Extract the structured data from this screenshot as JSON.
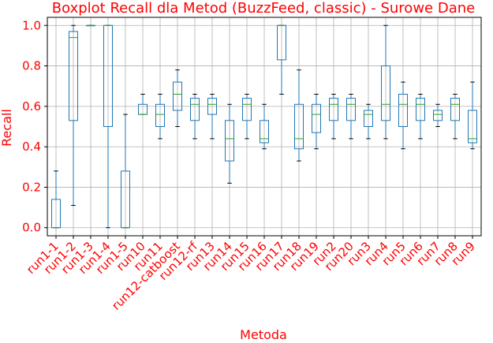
{
  "chart_data": {
    "type": "boxplot",
    "title": "Boxplot Recall dla Metod (BuzzFeed, classic) - Surowe Dane",
    "xlabel": "Metoda",
    "ylabel": "Recall",
    "ylim": [
      -0.04,
      1.04
    ],
    "yticks": [
      "0.0",
      "0.2",
      "0.4",
      "0.6",
      "0.8",
      "1.0"
    ],
    "grid": true,
    "colors": {
      "text": "#ff0000",
      "box": "#1f77b4",
      "median": "#2ca02c",
      "grid": "#b0b0b0"
    },
    "categories": [
      "run1-1",
      "run1-2",
      "run1-3",
      "run1-4",
      "run1-5",
      "run10",
      "run11",
      "run12-catboost",
      "run12-rf",
      "run13",
      "run14",
      "run15",
      "run16",
      "run17",
      "run18",
      "run19",
      "run2",
      "run20",
      "run3",
      "run4",
      "run5",
      "run6",
      "run7",
      "run8",
      "run9"
    ],
    "boxes": [
      {
        "wlo": 0.0,
        "q1": 0.0,
        "med": 0.0,
        "q3": 0.14,
        "whi": 0.28
      },
      {
        "wlo": 0.11,
        "q1": 0.53,
        "med": 0.94,
        "q3": 0.97,
        "whi": 1.0
      },
      {
        "wlo": 1.0,
        "q1": 1.0,
        "med": 1.0,
        "q3": 1.0,
        "whi": 1.0
      },
      {
        "wlo": 0.0,
        "q1": 0.5,
        "med": 1.0,
        "q3": 1.0,
        "whi": 1.0
      },
      {
        "wlo": 0.0,
        "q1": 0.0,
        "med": 0.0,
        "q3": 0.28,
        "whi": 0.56
      },
      {
        "wlo": 0.56,
        "q1": 0.56,
        "med": 0.56,
        "q3": 0.61,
        "whi": 0.66
      },
      {
        "wlo": 0.44,
        "q1": 0.5,
        "med": 0.56,
        "q3": 0.61,
        "whi": 0.66
      },
      {
        "wlo": 0.5,
        "q1": 0.58,
        "med": 0.66,
        "q3": 0.72,
        "whi": 0.78
      },
      {
        "wlo": 0.44,
        "q1": 0.53,
        "med": 0.61,
        "q3": 0.64,
        "whi": 0.66
      },
      {
        "wlo": 0.44,
        "q1": 0.56,
        "med": 0.61,
        "q3": 0.64,
        "whi": 0.66
      },
      {
        "wlo": 0.22,
        "q1": 0.33,
        "med": 0.44,
        "q3": 0.53,
        "whi": 0.61
      },
      {
        "wlo": 0.44,
        "q1": 0.53,
        "med": 0.61,
        "q3": 0.64,
        "whi": 0.66
      },
      {
        "wlo": 0.39,
        "q1": 0.42,
        "med": 0.44,
        "q3": 0.53,
        "whi": 0.61
      },
      {
        "wlo": 0.66,
        "q1": 0.83,
        "med": 1.0,
        "q3": 1.0,
        "whi": 1.0
      },
      {
        "wlo": 0.33,
        "q1": 0.39,
        "med": 0.44,
        "q3": 0.61,
        "whi": 0.78
      },
      {
        "wlo": 0.39,
        "q1": 0.47,
        "med": 0.56,
        "q3": 0.61,
        "whi": 0.66
      },
      {
        "wlo": 0.44,
        "q1": 0.53,
        "med": 0.61,
        "q3": 0.64,
        "whi": 0.66
      },
      {
        "wlo": 0.44,
        "q1": 0.53,
        "med": 0.61,
        "q3": 0.64,
        "whi": 0.66
      },
      {
        "wlo": 0.44,
        "q1": 0.5,
        "med": 0.56,
        "q3": 0.58,
        "whi": 0.61
      },
      {
        "wlo": 0.44,
        "q1": 0.53,
        "med": 0.61,
        "q3": 0.8,
        "whi": 1.0
      },
      {
        "wlo": 0.39,
        "q1": 0.5,
        "med": 0.61,
        "q3": 0.66,
        "whi": 0.72
      },
      {
        "wlo": 0.44,
        "q1": 0.53,
        "med": 0.61,
        "q3": 0.64,
        "whi": 0.66
      },
      {
        "wlo": 0.5,
        "q1": 0.53,
        "med": 0.56,
        "q3": 0.58,
        "whi": 0.61
      },
      {
        "wlo": 0.44,
        "q1": 0.53,
        "med": 0.61,
        "q3": 0.64,
        "whi": 0.66
      },
      {
        "wlo": 0.39,
        "q1": 0.42,
        "med": 0.44,
        "q3": 0.58,
        "whi": 0.72
      }
    ]
  }
}
